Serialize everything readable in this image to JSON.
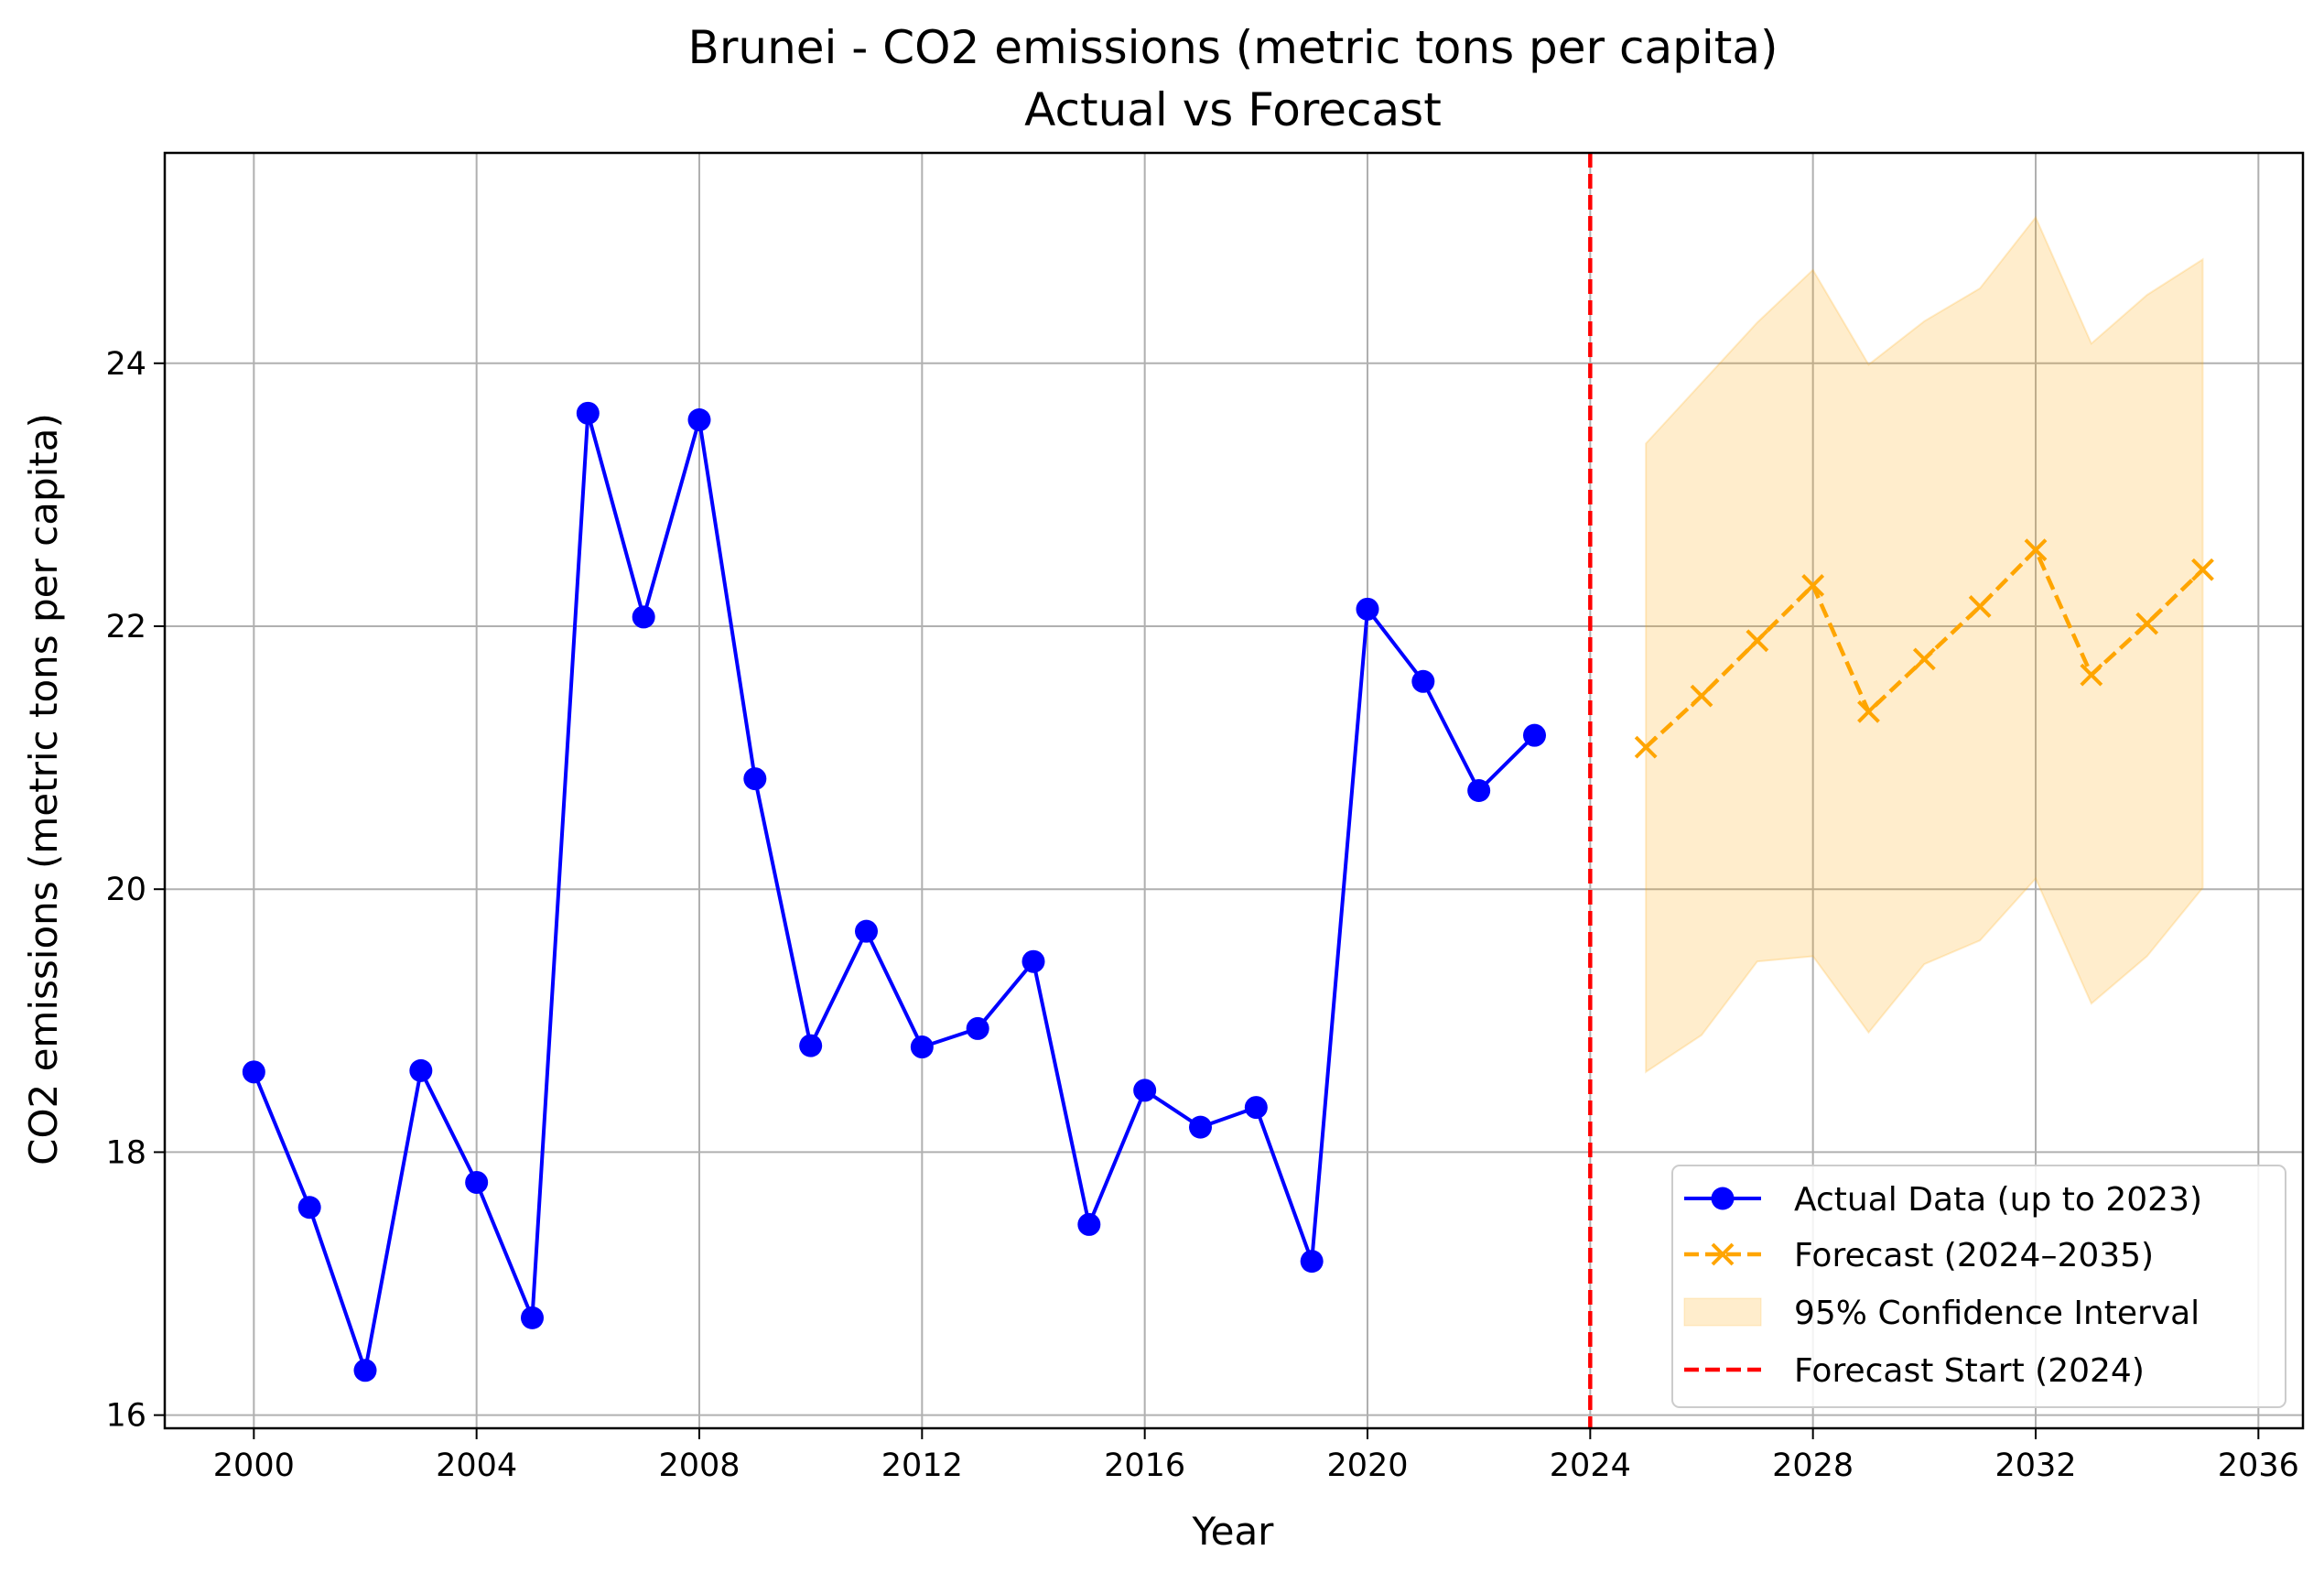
{
  "chart_data": {
    "type": "line",
    "title": "Brunei - CO2 emissions (metric tons per capita)",
    "subtitle": "Actual vs Forecast",
    "xlabel": "Year",
    "ylabel": "CO2 emissions (metric tons per capita)",
    "xlim": [
      1998.4,
      2036.8
    ],
    "ylim": [
      15.9,
      25.6
    ],
    "xticks": [
      2000,
      2004,
      2008,
      2012,
      2016,
      2020,
      2024,
      2028,
      2032,
      2036
    ],
    "yticks": [
      16,
      18,
      20,
      22,
      24
    ],
    "grid": true,
    "legend_position": "lower-right",
    "colors": {
      "actual": "#0000ff",
      "forecast": "#ffa500",
      "ci_fill": "#ffa500",
      "forecast_start": "#ff0000",
      "grid": "#b0b0b0"
    },
    "forecast_start": {
      "x": 2024,
      "label": "Forecast Start (2024)"
    },
    "series": [
      {
        "name": "Actual Data (up to 2023)",
        "x": [
          2000,
          2001,
          2002,
          2003,
          2004,
          2005,
          2006,
          2007,
          2008,
          2009,
          2010,
          2011,
          2012,
          2013,
          2014,
          2015,
          2016,
          2017,
          2018,
          2019,
          2020,
          2021,
          2022,
          2023
        ],
        "values": [
          18.61,
          17.58,
          16.34,
          18.62,
          17.77,
          16.74,
          23.62,
          22.07,
          23.57,
          20.84,
          18.81,
          19.68,
          18.8,
          18.94,
          19.45,
          17.45,
          18.47,
          18.19,
          18.34,
          17.17,
          22.13,
          21.58,
          20.75,
          21.17
        ]
      },
      {
        "name": "Forecast (2024–2035)",
        "x": [
          2025,
          2026,
          2027,
          2028,
          2029,
          2030,
          2031,
          2032,
          2033,
          2034,
          2035
        ],
        "values": [
          21.08,
          21.47,
          21.89,
          22.31,
          21.35,
          21.75,
          22.15,
          22.58,
          21.63,
          22.02,
          22.43
        ]
      }
    ],
    "confidence_interval": {
      "name": "95% Confidence Interval",
      "x": [
        2025,
        2026,
        2027,
        2028,
        2029,
        2030,
        2031,
        2032,
        2033,
        2034,
        2035
      ],
      "lower": [
        18.61,
        18.89,
        19.45,
        19.49,
        18.91,
        19.43,
        19.61,
        20.08,
        19.13,
        19.49,
        20.01
      ],
      "upper": [
        23.39,
        23.85,
        24.31,
        24.71,
        23.99,
        24.32,
        24.57,
        25.11,
        24.15,
        24.52,
        24.79
      ]
    }
  }
}
